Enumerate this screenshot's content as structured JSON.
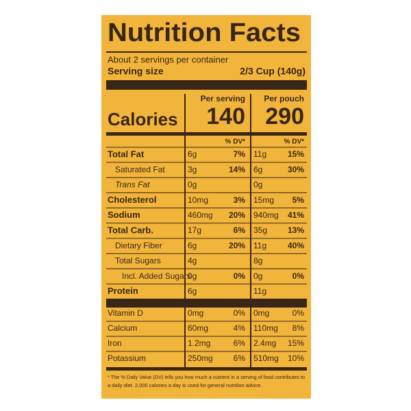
{
  "title": "Nutrition Facts",
  "servings": "About 2 servings per container",
  "serving_size_label": "Serving size",
  "serving_size_value": "2/3 Cup (140g)",
  "columns": [
    "Per serving",
    "Per pouch"
  ],
  "calories_label": "Calories",
  "calories": [
    "140",
    "290"
  ],
  "dv_header": [
    "% DV*",
    "% DV*"
  ],
  "nutrients": [
    {
      "name": "Total Fat",
      "style": "bold",
      "serving": "6g",
      "serving_dv": "7%",
      "pouch": "11g",
      "pouch_dv": "15%"
    },
    {
      "name": "Saturated Fat",
      "style": "indent",
      "serving": "3g",
      "serving_dv": "14%",
      "pouch": "6g",
      "pouch_dv": "30%"
    },
    {
      "name": "Trans Fat",
      "style": "indent-italic",
      "serving": "0g",
      "pouch": "0g"
    },
    {
      "name": "Cholesterol",
      "style": "bold",
      "serving": "10mg",
      "serving_dv": "3%",
      "pouch": "15mg",
      "pouch_dv": "5%"
    },
    {
      "name": "Sodium",
      "style": "bold",
      "serving": "460mg",
      "serving_dv": "20%",
      "pouch": "940mg",
      "pouch_dv": "41%"
    },
    {
      "name": "Total Carb.",
      "style": "bold",
      "serving": "17g",
      "serving_dv": "6%",
      "pouch": "35g",
      "pouch_dv": "13%"
    },
    {
      "name": "Dietary Fiber",
      "style": "indent",
      "serving": "6g",
      "serving_dv": "20%",
      "pouch": "11g",
      "pouch_dv": "40%"
    },
    {
      "name": "Total Sugars",
      "style": "indent",
      "serving": "4g",
      "pouch": "8g"
    },
    {
      "name": "Incl. Added Sugars",
      "style": "indent2",
      "serving": "0g",
      "serving_dv": "0%",
      "pouch": "0g",
      "pouch_dv": "0%"
    },
    {
      "name": "Protein",
      "style": "bold",
      "serving": "6g",
      "pouch": "11g"
    }
  ],
  "vitamins": [
    {
      "name": "Vitamin D",
      "serving": "0mg",
      "serving_dv": "0%",
      "pouch": "0mg",
      "pouch_dv": "0%"
    },
    {
      "name": "Calcium",
      "serving": "60mg",
      "serving_dv": "4%",
      "pouch": "110mg",
      "pouch_dv": "8%"
    },
    {
      "name": "Iron",
      "serving": "1.2mg",
      "serving_dv": "6%",
      "pouch": "2.4mg",
      "pouch_dv": "15%"
    },
    {
      "name": "Potassium",
      "serving": "250mg",
      "serving_dv": "6%",
      "pouch": "510mg",
      "pouch_dv": "10%"
    }
  ],
  "footnote": [
    "* The % Daily Value (DV) tells you how much a nutrient in a serving of food contributes to",
    "a daily diet. 2,000 calories a day is used for general nutrition advice."
  ]
}
